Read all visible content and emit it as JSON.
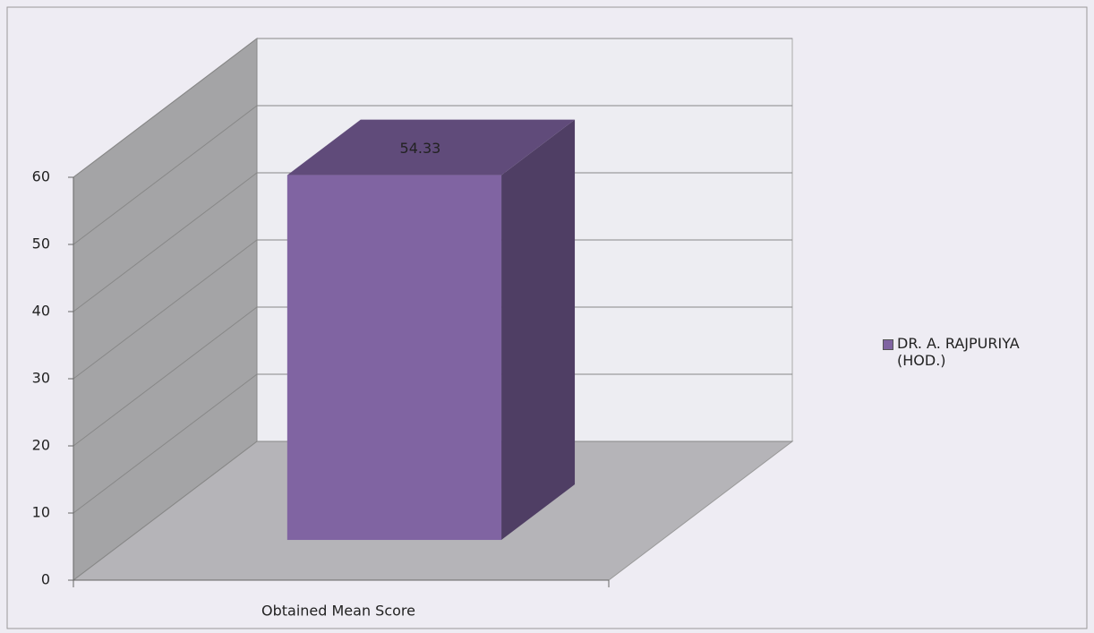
{
  "chart_data": {
    "type": "bar3d",
    "categories": [
      "Obtained Mean Score"
    ],
    "series": [
      {
        "name": "DR. A. RAJPURIYA (HOD.)",
        "color": "#8064a2",
        "values": [
          54.33
        ]
      }
    ],
    "ylim": [
      0,
      60
    ],
    "yticks": [
      0,
      10,
      20,
      30,
      40,
      50,
      60
    ],
    "grid": true,
    "legend": "right"
  }
}
